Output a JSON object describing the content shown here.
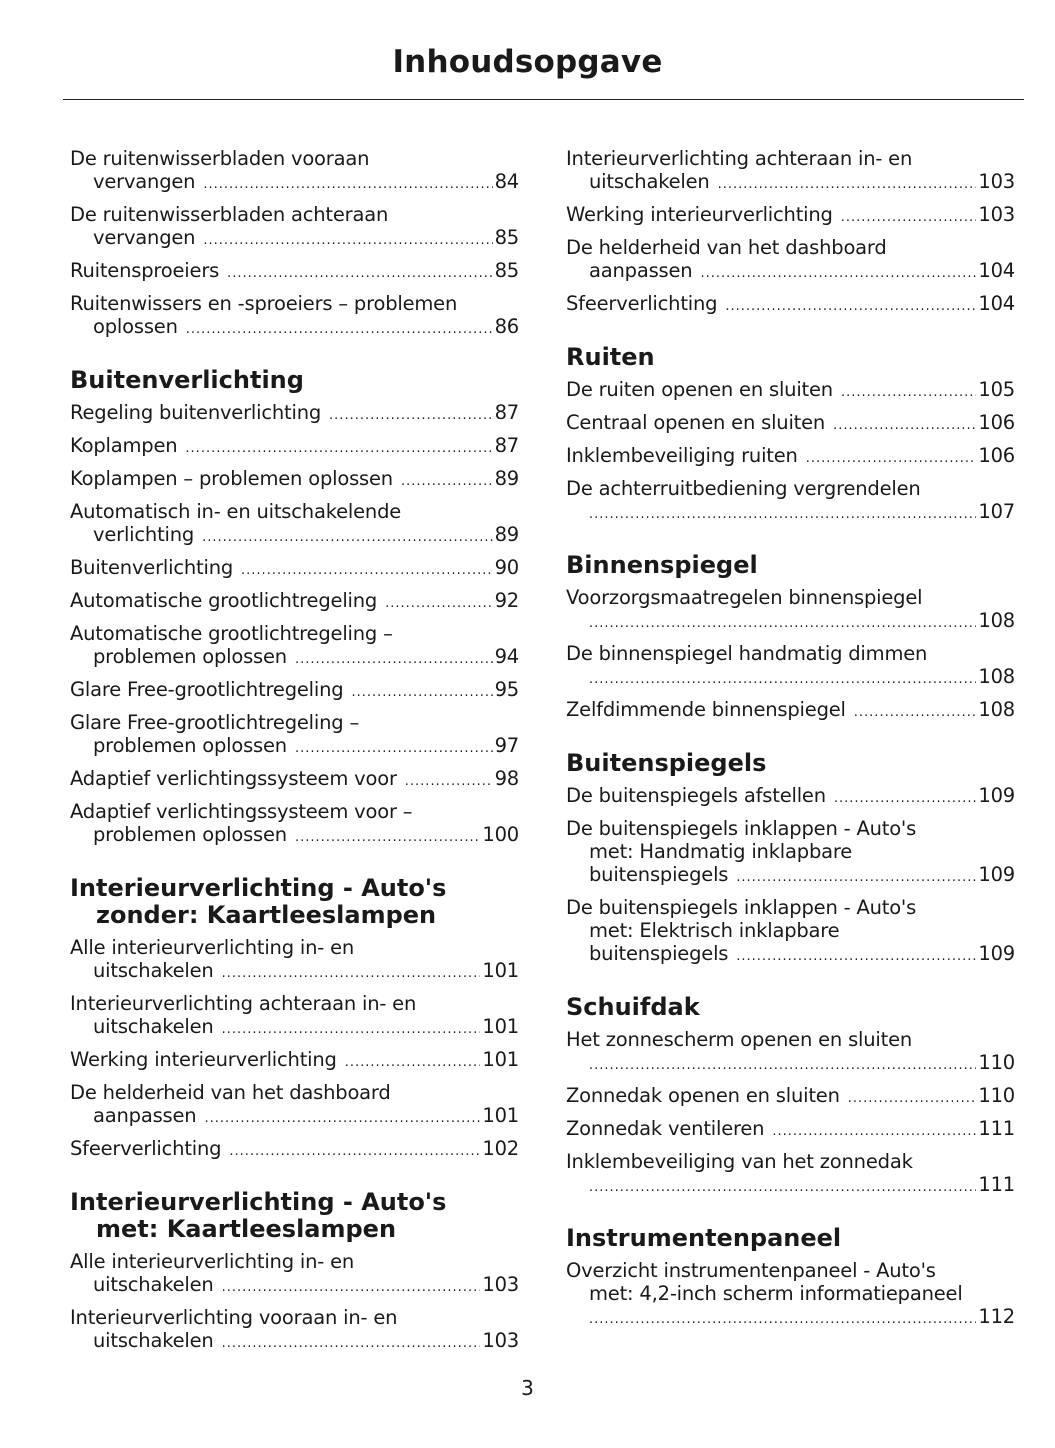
{
  "title": "Inhoudsopgave",
  "page_number": "3",
  "columns": [
    [
      {
        "heading": [],
        "entries": [
          {
            "lines": [
              "De ruitenwisserbladen vooraan",
              "vervangen"
            ],
            "page": "84"
          },
          {
            "lines": [
              "De ruitenwisserbladen achteraan",
              "vervangen"
            ],
            "page": "85"
          },
          {
            "lines": [
              "Ruitensproeiers"
            ],
            "page": "85"
          },
          {
            "lines": [
              "Ruitenwissers en -sproeiers – problemen",
              "oplossen"
            ],
            "page": "86"
          }
        ]
      },
      {
        "heading": [
          "Buitenverlichting"
        ],
        "entries": [
          {
            "lines": [
              "Regeling buitenverlichting"
            ],
            "page": "87"
          },
          {
            "lines": [
              "Koplampen"
            ],
            "page": "87"
          },
          {
            "lines": [
              "Koplampen – problemen oplossen"
            ],
            "page": "89"
          },
          {
            "lines": [
              "Automatisch in- en uitschakelende",
              "verlichting"
            ],
            "page": "89"
          },
          {
            "lines": [
              "Buitenverlichting"
            ],
            "page": "90"
          },
          {
            "lines": [
              "Automatische grootlichtregeling"
            ],
            "page": "92"
          },
          {
            "lines": [
              "Automatische grootlichtregeling –",
              "problemen oplossen"
            ],
            "page": "94"
          },
          {
            "lines": [
              "Glare Free-grootlichtregeling"
            ],
            "page": "95"
          },
          {
            "lines": [
              "Glare Free-grootlichtregeling –",
              "problemen oplossen"
            ],
            "page": "97"
          },
          {
            "lines": [
              "Adaptief verlichtingssysteem voor"
            ],
            "page": "98"
          },
          {
            "lines": [
              "Adaptief verlichtingssysteem voor –",
              "problemen oplossen"
            ],
            "page": "100"
          }
        ]
      },
      {
        "heading": [
          "Interieurverlichting - Auto's",
          "zonder: Kaartleeslampen"
        ],
        "entries": [
          {
            "lines": [
              "Alle interieurverlichting in- en",
              "uitschakelen"
            ],
            "page": "101"
          },
          {
            "lines": [
              "Interieurverlichting achteraan in- en",
              "uitschakelen"
            ],
            "page": "101"
          },
          {
            "lines": [
              "Werking interieurverlichting"
            ],
            "page": "101"
          },
          {
            "lines": [
              "De helderheid van het dashboard",
              "aanpassen"
            ],
            "page": "101"
          },
          {
            "lines": [
              "Sfeerverlichting"
            ],
            "page": "102"
          }
        ]
      },
      {
        "heading": [
          "Interieurverlichting - Auto's",
          "met: Kaartleeslampen"
        ],
        "entries": [
          {
            "lines": [
              "Alle interieurverlichting in- en",
              "uitschakelen"
            ],
            "page": "103"
          },
          {
            "lines": [
              "Interieurverlichting vooraan in- en",
              "uitschakelen"
            ],
            "page": "103"
          }
        ]
      }
    ],
    [
      {
        "heading": [],
        "entries": [
          {
            "lines": [
              "Interieurverlichting achteraan in- en",
              "uitschakelen"
            ],
            "page": "103"
          },
          {
            "lines": [
              "Werking interieurverlichting"
            ],
            "page": "103"
          },
          {
            "lines": [
              "De helderheid van het dashboard",
              "aanpassen"
            ],
            "page": "104"
          },
          {
            "lines": [
              "Sfeerverlichting"
            ],
            "page": "104"
          }
        ]
      },
      {
        "heading": [
          "Ruiten"
        ],
        "entries": [
          {
            "lines": [
              "De ruiten openen en sluiten"
            ],
            "page": "105"
          },
          {
            "lines": [
              "Centraal openen en sluiten"
            ],
            "page": "106"
          },
          {
            "lines": [
              "Inklembeveiliging ruiten"
            ],
            "page": "106"
          },
          {
            "lines": [
              "De achterruitbediening vergrendelen",
              ""
            ],
            "page": "107"
          }
        ]
      },
      {
        "heading": [
          "Binnenspiegel"
        ],
        "entries": [
          {
            "lines": [
              "Voorzorgsmaatregelen binnenspiegel",
              ""
            ],
            "page": "108"
          },
          {
            "lines": [
              "De binnenspiegel handmatig dimmen",
              ""
            ],
            "page": "108"
          },
          {
            "lines": [
              "Zelfdimmende binnenspiegel"
            ],
            "page": "108"
          }
        ]
      },
      {
        "heading": [
          "Buitenspiegels"
        ],
        "entries": [
          {
            "lines": [
              "De buitenspiegels afstellen"
            ],
            "page": "109"
          },
          {
            "lines": [
              "De buitenspiegels inklappen - Auto's",
              "met: Handmatig inklapbare",
              "buitenspiegels"
            ],
            "page": "109"
          },
          {
            "lines": [
              "De buitenspiegels inklappen - Auto's",
              "met: Elektrisch inklapbare",
              "buitenspiegels"
            ],
            "page": "109"
          }
        ]
      },
      {
        "heading": [
          "Schuifdak"
        ],
        "entries": [
          {
            "lines": [
              "Het zonnescherm openen en sluiten",
              ""
            ],
            "page": "110"
          },
          {
            "lines": [
              "Zonnedak openen en sluiten"
            ],
            "page": "110"
          },
          {
            "lines": [
              "Zonnedak ventileren"
            ],
            "page": "111"
          },
          {
            "lines": [
              "Inklembeveiliging van het zonnedak",
              ""
            ],
            "page": "111"
          }
        ]
      },
      {
        "heading": [
          "Instrumentenpaneel"
        ],
        "entries": [
          {
            "lines": [
              "Overzicht instrumentenpaneel - Auto's",
              "met: 4,2-inch scherm informatiepaneel",
              ""
            ],
            "page": "112"
          }
        ]
      }
    ]
  ]
}
